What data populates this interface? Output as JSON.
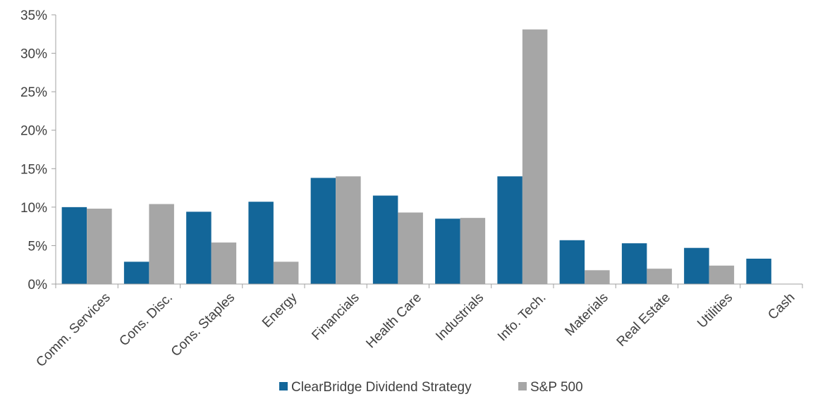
{
  "chart_data": {
    "type": "bar",
    "title": "",
    "xlabel": "",
    "ylabel": "",
    "ylim": [
      0,
      35
    ],
    "yticks": [
      "0%",
      "5%",
      "10%",
      "15%",
      "20%",
      "25%",
      "30%",
      "35%"
    ],
    "ytick_values": [
      0,
      5,
      10,
      15,
      20,
      25,
      30,
      35
    ],
    "grid": false,
    "legend_position": "bottom",
    "categories": [
      "Comm. Services",
      "Cons. Disc.",
      "Cons. Staples",
      "Energy",
      "Financials",
      "Health Care",
      "Industrials",
      "Info. Tech.",
      "Materials",
      "Real Estate",
      "Utilities",
      "Cash"
    ],
    "series": [
      {
        "name": "ClearBridge Dividend Strategy",
        "color": "#136699",
        "values": [
          10.0,
          2.9,
          9.4,
          10.7,
          13.8,
          11.5,
          8.5,
          14.0,
          5.7,
          5.3,
          4.7,
          3.3
        ]
      },
      {
        "name": "S&P 500",
        "color": "#a6a6a6",
        "values": [
          9.8,
          10.4,
          5.4,
          2.9,
          14.0,
          9.3,
          8.6,
          33.1,
          1.8,
          2.0,
          2.4,
          0
        ]
      }
    ]
  }
}
